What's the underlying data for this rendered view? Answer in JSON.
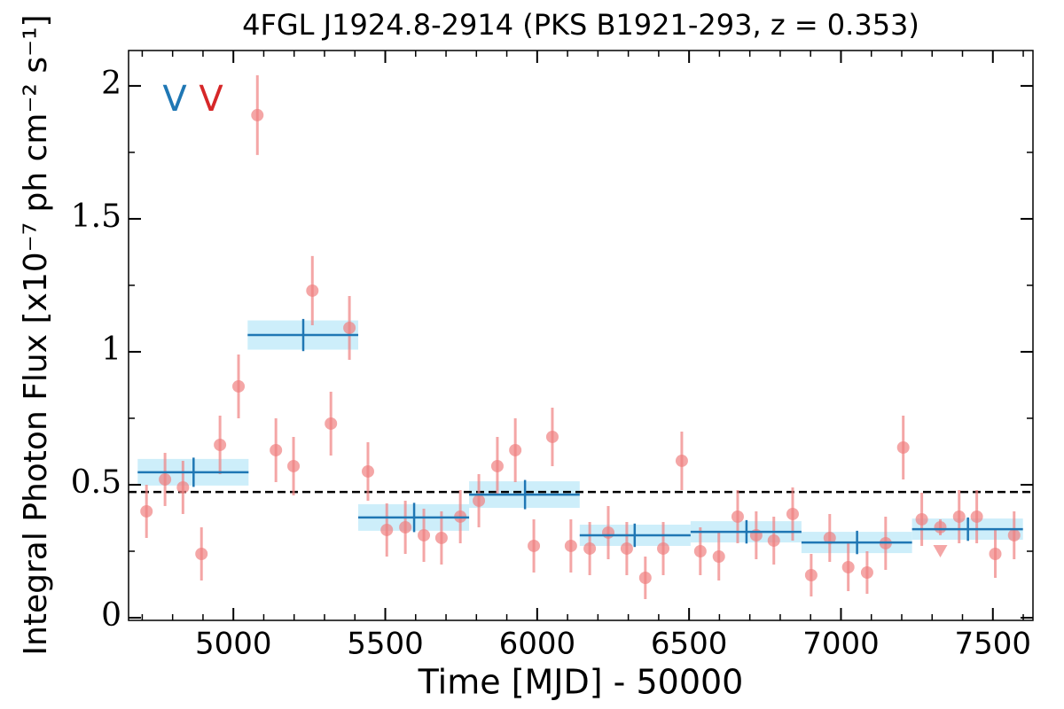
{
  "chart_data": {
    "type": "lightcurve",
    "title": "4FGL J1924.8-2914 (PKS B1921-293, z = 0.353)",
    "x_label": "Time [MJD] - 50000",
    "y_label": "Integral Photon Flux [x10⁻⁷ ph cm⁻² s⁻¹]",
    "xlim": [
      4655,
      7632
    ],
    "ylim": [
      -0.01,
      2.133
    ],
    "xticks": [
      5000,
      5500,
      6000,
      6500,
      7000,
      7500
    ],
    "minor_xticks": [
      4700,
      4800,
      4900,
      5100,
      5200,
      5300,
      5400,
      5600,
      5700,
      5800,
      5900,
      6100,
      6200,
      6300,
      6400,
      6600,
      6700,
      6800,
      6900,
      7100,
      7200,
      7300,
      7400,
      7600
    ],
    "yticks": [
      0,
      0.5,
      1,
      1.5,
      2
    ],
    "minor_yticks": [
      0.25,
      0.75,
      1.25,
      1.75
    ],
    "points": {
      "color": "#f08080",
      "x": [
        4714,
        4775,
        4834,
        4895,
        4956,
        5017,
        5079,
        5140,
        5198,
        5260,
        5321,
        5382,
        5443,
        5505,
        5566,
        5627,
        5685,
        5747,
        5808,
        5869,
        5928,
        5989,
        6050,
        6111,
        6173,
        6234,
        6295,
        6356,
        6415,
        6476,
        6537,
        6598,
        6660,
        6721,
        6779,
        6841,
        6902,
        6963,
        7024,
        7086,
        7147,
        7205,
        7266,
        7327,
        7389,
        7447,
        7508,
        7570
      ],
      "y": [
        0.4,
        0.52,
        0.49,
        0.24,
        0.65,
        0.87,
        1.89,
        0.63,
        0.57,
        1.23,
        0.73,
        1.09,
        0.55,
        0.33,
        0.34,
        0.31,
        0.3,
        0.38,
        0.44,
        0.57,
        0.63,
        0.27,
        0.68,
        0.27,
        0.26,
        0.32,
        0.26,
        0.15,
        0.26,
        0.59,
        0.25,
        0.23,
        0.38,
        0.31,
        0.29,
        0.39,
        0.16,
        0.3,
        0.19,
        0.17,
        0.28,
        0.64,
        0.37,
        0.34,
        0.38,
        0.38,
        0.24,
        0.31
      ],
      "err": [
        0.1,
        0.1,
        0.1,
        0.1,
        0.11,
        0.12,
        0.15,
        0.12,
        0.11,
        0.13,
        0.12,
        0.12,
        0.11,
        0.1,
        0.1,
        0.1,
        0.1,
        0.1,
        0.1,
        0.11,
        0.12,
        0.1,
        0.11,
        0.1,
        0.1,
        0.1,
        0.1,
        0.08,
        0.1,
        0.11,
        0.09,
        0.09,
        0.1,
        0.09,
        0.09,
        0.1,
        0.08,
        0.09,
        0.09,
        0.08,
        0.1,
        0.12,
        0.1,
        0.03,
        0.1,
        0.1,
        0.09,
        0.09
      ]
    },
    "upper_limits": {
      "color": "#f08080",
      "x": [
        7327
      ],
      "y": [
        0.25
      ]
    },
    "bins": {
      "color": "#1f77b4",
      "band_color": "#cdeefa",
      "x_start": [
        4685,
        5047,
        5411,
        5776,
        6140,
        6505,
        6870,
        7234
      ],
      "x_end": [
        5050,
        5411,
        5776,
        6140,
        6505,
        6870,
        7234,
        7599
      ],
      "x_center": [
        4869,
        5230,
        5595,
        5960,
        6321,
        6689,
        7053,
        7418
      ],
      "y": [
        0.547,
        1.063,
        0.377,
        0.463,
        0.31,
        0.323,
        0.283,
        0.333
      ],
      "err": [
        0.05,
        0.055,
        0.05,
        0.05,
        0.04,
        0.04,
        0.04,
        0.04
      ]
    },
    "mean_line": 0.473,
    "annotations": [
      {
        "text": "V",
        "color": "#1f77b4"
      },
      {
        "text": "V",
        "color": "#d62728"
      }
    ]
  }
}
